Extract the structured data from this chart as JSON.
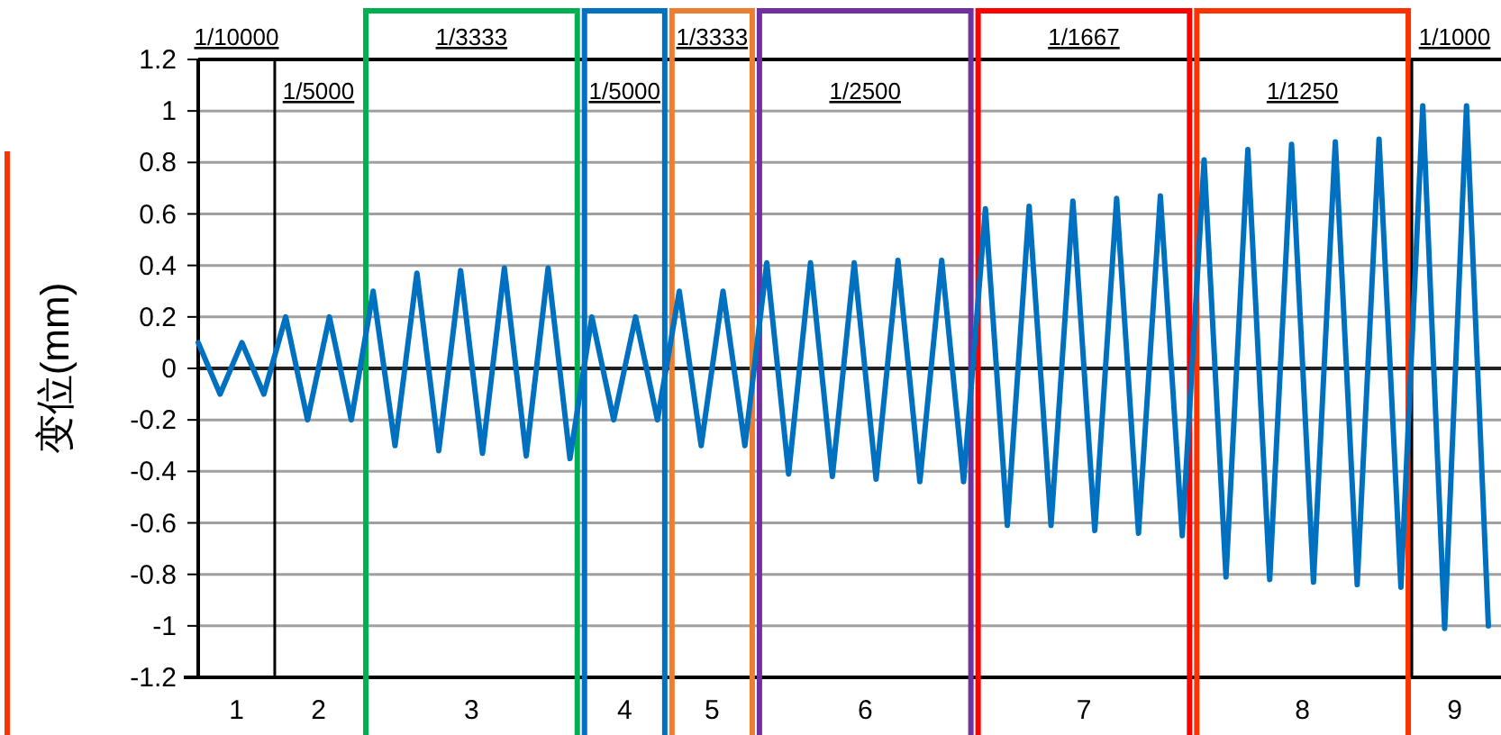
{
  "chart_data": {
    "type": "line",
    "ylabel": "变位(mm)",
    "categories": [
      null,
      null,
      null,
      null,
      null,
      null,
      null,
      null,
      null,
      null,
      null,
      null,
      null,
      null,
      null,
      null,
      null,
      null,
      null,
      null,
      null,
      null,
      null,
      null,
      null,
      null,
      null,
      null,
      null,
      null,
      null,
      null,
      null,
      null,
      null,
      null,
      null,
      null,
      null,
      null,
      null,
      null,
      null,
      null,
      null,
      null,
      null,
      null,
      null,
      null,
      null,
      null,
      null,
      null,
      null,
      null,
      null,
      null,
      null,
      null
    ],
    "series": [
      {
        "color": "#0070c0",
        "values": [
          0.1,
          -0.1,
          0.1,
          -0.1,
          0.2,
          -0.2,
          0.2,
          -0.2,
          0.3,
          -0.3,
          0.37,
          -0.32,
          0.38,
          -0.33,
          0.39,
          -0.34,
          0.39,
          -0.35,
          0.2,
          -0.2,
          0.2,
          -0.2,
          0.3,
          -0.3,
          0.3,
          -0.3,
          0.41,
          -0.41,
          0.41,
          -0.42,
          0.41,
          -0.43,
          0.42,
          -0.44,
          0.42,
          -0.44,
          0.62,
          -0.61,
          0.63,
          -0.61,
          0.65,
          -0.63,
          0.66,
          -0.64,
          0.67,
          -0.65,
          0.81,
          -0.81,
          0.85,
          -0.82,
          0.87,
          -0.83,
          0.88,
          -0.84,
          0.89,
          -0.85,
          1.02,
          -1.01,
          1.02,
          -1.0
        ]
      }
    ],
    "ylim": [
      -1.2,
      1.2
    ],
    "yticks": [
      -1.2,
      -1,
      -0.8,
      -0.6,
      -0.4,
      -0.2,
      0,
      0.2,
      0.4,
      0.6,
      0.8,
      1,
      1.2
    ],
    "grid": "y",
    "annotations": [
      "1/10000",
      "1/5000",
      "1/3333",
      "1/5000",
      "1/3333",
      "1/2500",
      "1/1667",
      "1/1250",
      "1/1000",
      "1",
      "2",
      "3",
      "4",
      "5",
      "6",
      "7",
      "8",
      "9"
    ]
  }
}
